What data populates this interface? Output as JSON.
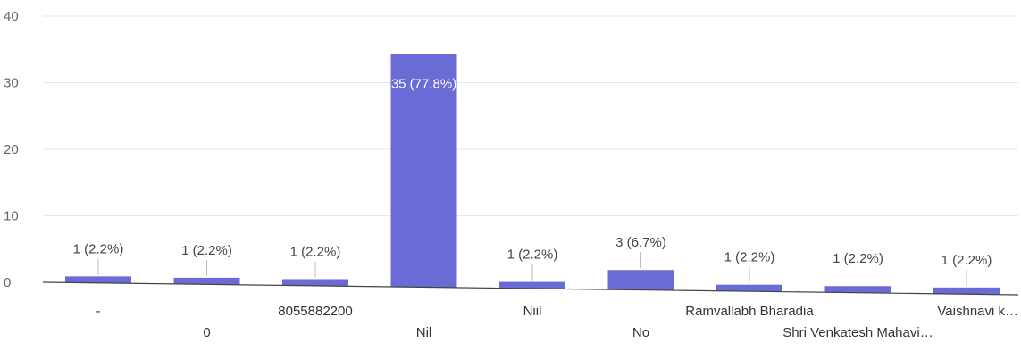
{
  "chart_data": {
    "type": "bar",
    "title": "",
    "xlabel": "",
    "ylabel": "",
    "ylim": [
      0,
      40
    ],
    "yticks": [
      0,
      10,
      20,
      30,
      40
    ],
    "grid": false,
    "categories": [
      "-",
      "0",
      "8055882200",
      "Nil",
      "Niil",
      "No",
      "Ramvallabh Bharadia",
      "Shri Venkatesh Mahavi…",
      "Vaishnavi k…"
    ],
    "values": [
      1,
      1,
      1,
      35,
      1,
      3,
      1,
      1,
      1
    ],
    "data_labels": [
      "1 (2.2%)",
      "1 (2.2%)",
      "1 (2.2%)",
      "35 (77.8%)",
      "1 (2.2%)",
      "3 (6.7%)",
      "1 (2.2%)",
      "1 (2.2%)",
      "1 (2.2%)"
    ],
    "bar_color": "#6b6bd6"
  }
}
